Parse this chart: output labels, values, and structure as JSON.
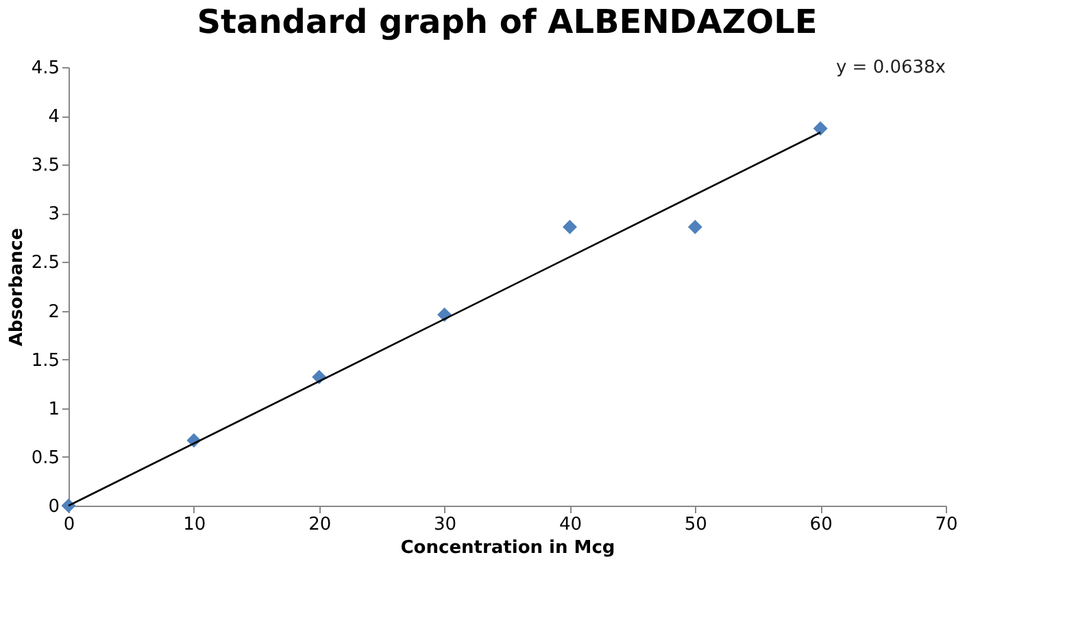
{
  "chart_data": {
    "type": "scatter",
    "title": "Standard graph of ALBENDAZOLE",
    "xlabel": "Concentration in Mcg",
    "ylabel": "Absorbance",
    "series": [
      {
        "color": "#4f81bd",
        "marker": "diamond",
        "x": [
          0,
          10,
          20,
          30,
          40,
          50,
          60
        ],
        "values": [
          0.0,
          0.67,
          1.32,
          1.96,
          2.86,
          2.86,
          3.87
        ]
      },
      {
        "type": "line",
        "color": "#000000",
        "x": [
          0,
          60
        ],
        "values": [
          0.0,
          3.83
        ]
      }
    ],
    "annotations": [
      "y = 0.0638x"
    ],
    "xlim": [
      0,
      70
    ],
    "xticks": [
      0,
      10,
      20,
      30,
      40,
      50,
      60,
      70
    ],
    "ylim": [
      0,
      4.5
    ],
    "yticks": [
      0,
      0.5,
      1,
      1.5,
      2,
      2.5,
      3,
      3.5,
      4,
      4.5
    ],
    "grid": false,
    "legend": false
  }
}
